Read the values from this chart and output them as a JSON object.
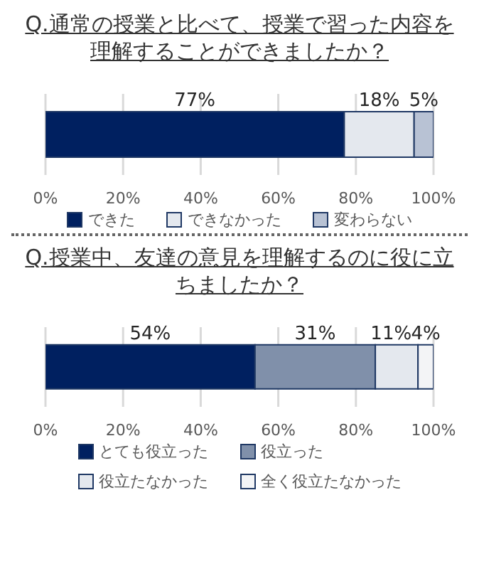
{
  "chart_data": [
    {
      "type": "bar",
      "orientation": "horizontal",
      "stacked": true,
      "title": "Q.通常の授業と比べて、授業で習った内容を理解することができましたか？",
      "categories": [
        null
      ],
      "series": [
        {
          "name": "できた",
          "color": "#002060",
          "values": [
            77
          ],
          "value_labels": [
            "77%"
          ]
        },
        {
          "name": "できなかった",
          "color": "#e4e8ee",
          "values": [
            18
          ],
          "value_labels": [
            "18%"
          ]
        },
        {
          "name": "変わらない",
          "color": "#b8c2d4",
          "values": [
            5
          ],
          "value_labels": [
            "5%"
          ]
        }
      ],
      "xlim": [
        0,
        100
      ],
      "xticks": [
        {
          "value": 0,
          "label": "0%"
        },
        {
          "value": 20,
          "label": "20%"
        },
        {
          "value": 40,
          "label": "40%"
        },
        {
          "value": 60,
          "label": "60%"
        },
        {
          "value": 80,
          "label": "80%"
        },
        {
          "value": 100,
          "label": "100%"
        }
      ],
      "grid": "x",
      "legend": "bottom"
    },
    {
      "type": "bar",
      "orientation": "horizontal",
      "stacked": true,
      "title": "Q.授業中、友達の意見を理解するのに役に立ちましたか？",
      "categories": [
        null
      ],
      "series": [
        {
          "name": "とても役立った",
          "color": "#002060",
          "values": [
            54
          ],
          "value_labels": [
            "54%"
          ]
        },
        {
          "name": "役立った",
          "color": "#8090aa",
          "values": [
            31
          ],
          "value_labels": [
            "31%"
          ]
        },
        {
          "name": "役立たなかった",
          "color": "#e4e8ee",
          "values": [
            11
          ],
          "value_labels": [
            "11%"
          ]
        },
        {
          "name": "全く役立たなかった",
          "color": "#f3f4f6",
          "values": [
            4
          ],
          "value_labels": [
            "4%"
          ]
        }
      ],
      "xlim": [
        0,
        100
      ],
      "xticks": [
        {
          "value": 0,
          "label": "0%"
        },
        {
          "value": 20,
          "label": "20%"
        },
        {
          "value": 40,
          "label": "40%"
        },
        {
          "value": 60,
          "label": "60%"
        },
        {
          "value": 80,
          "label": "80%"
        },
        {
          "value": 100,
          "label": "100%"
        }
      ],
      "grid": "x",
      "legend": "bottom"
    }
  ]
}
